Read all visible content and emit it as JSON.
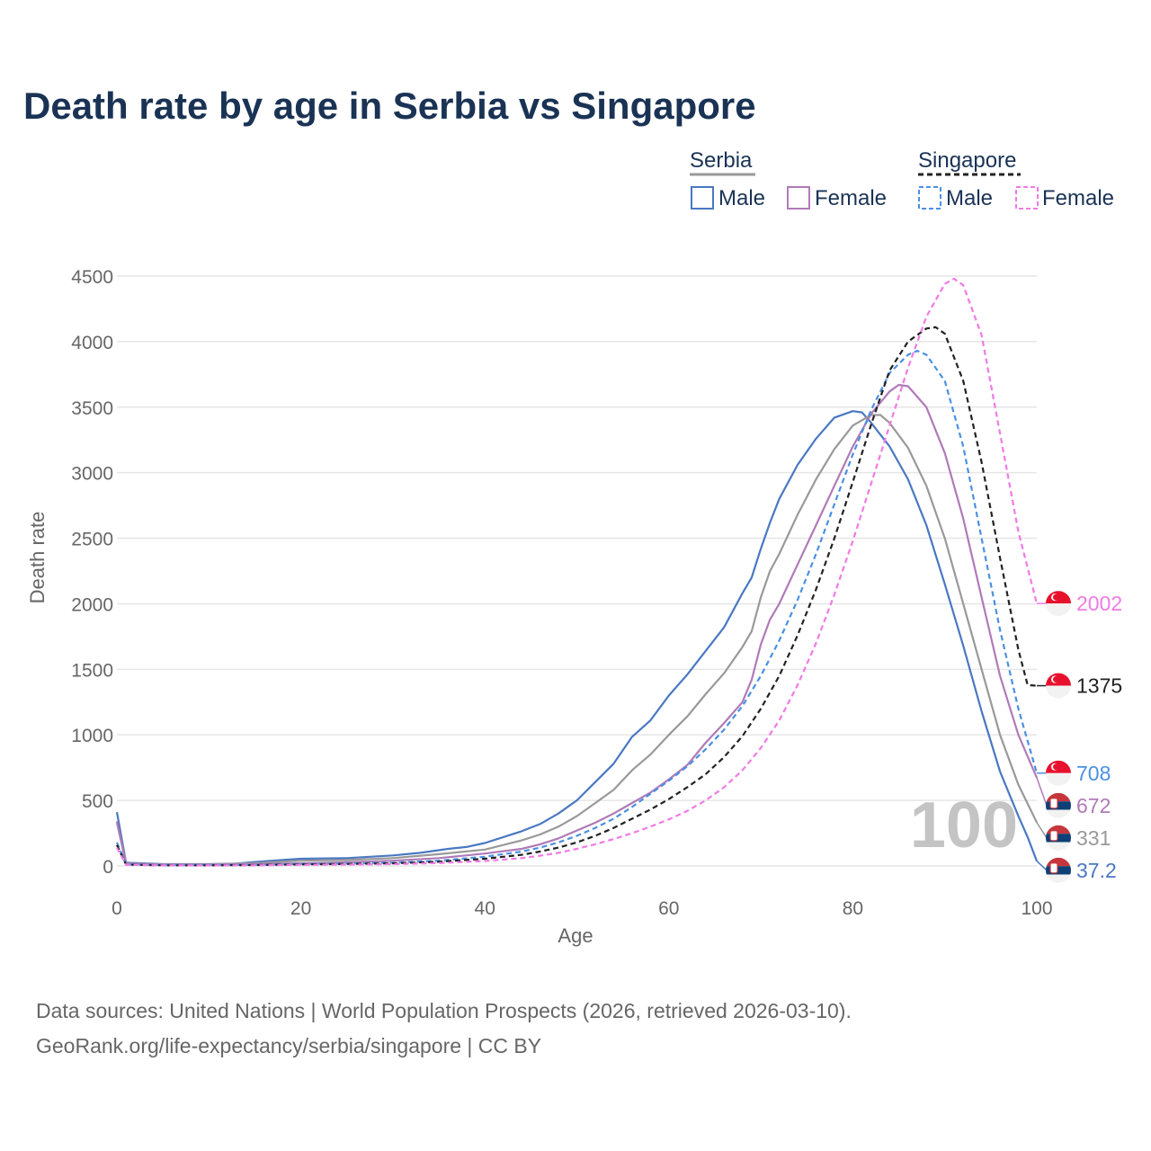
{
  "title": "Death rate by age in Serbia vs Singapore",
  "legend": {
    "group1": "Serbia",
    "group2": "Singapore",
    "items": [
      {
        "label": "Male",
        "color": "#4a78c2",
        "dashed": false
      },
      {
        "label": "Female",
        "color": "#b07ab8",
        "dashed": false
      },
      {
        "label": "Male",
        "color": "#4a90e2",
        "dashed": true
      },
      {
        "label": "Female",
        "color": "#f07ae6",
        "dashed": true
      }
    ]
  },
  "watermark": "100",
  "footer": {
    "line1": "Data sources: United Nations | World Population Prospects (2026, retrieved 2026-03-10).",
    "line2": "GeoRank.org/life-expectancy/serbia/singapore | CC BY"
  },
  "colors": {
    "serbia_male": "#4a78c2",
    "serbia_female": "#b07ab8",
    "serbia_total": "#999999",
    "singapore_male": "#4a90e2",
    "singapore_female": "#f07ae6",
    "singapore_total": "#222222",
    "grid": "#e6e6e6"
  },
  "chart_data": {
    "type": "line",
    "title": "Death rate by age in Serbia vs Singapore",
    "xlabel": "Age",
    "ylabel": "Death rate",
    "xlim": [
      0,
      100
    ],
    "ylim": [
      0,
      4500
    ],
    "xticks": [
      0,
      20,
      40,
      60,
      80,
      100
    ],
    "yticks": [
      0,
      500,
      1000,
      1500,
      2000,
      2500,
      3000,
      3500,
      4000,
      4500
    ],
    "grid": true,
    "series": [
      {
        "name": "Serbia Male",
        "key": "serbia_male",
        "dashed": false,
        "end_label": "37.2",
        "flag": "serbia",
        "points": [
          [
            0,
            410
          ],
          [
            1,
            25
          ],
          [
            5,
            14
          ],
          [
            10,
            14
          ],
          [
            13,
            18
          ],
          [
            15,
            30
          ],
          [
            18,
            45
          ],
          [
            20,
            55
          ],
          [
            25,
            60
          ],
          [
            30,
            80
          ],
          [
            33,
            100
          ],
          [
            36,
            130
          ],
          [
            38,
            145
          ],
          [
            40,
            175
          ],
          [
            42,
            220
          ],
          [
            44,
            265
          ],
          [
            46,
            320
          ],
          [
            48,
            400
          ],
          [
            50,
            500
          ],
          [
            52,
            640
          ],
          [
            54,
            780
          ],
          [
            56,
            985
          ],
          [
            58,
            1110
          ],
          [
            60,
            1300
          ],
          [
            62,
            1460
          ],
          [
            64,
            1640
          ],
          [
            66,
            1820
          ],
          [
            68,
            2080
          ],
          [
            69,
            2200
          ],
          [
            70,
            2420
          ],
          [
            71,
            2620
          ],
          [
            72,
            2800
          ],
          [
            74,
            3060
          ],
          [
            76,
            3260
          ],
          [
            78,
            3420
          ],
          [
            80,
            3470
          ],
          [
            81,
            3460
          ],
          [
            82,
            3380
          ],
          [
            84,
            3200
          ],
          [
            86,
            2950
          ],
          [
            88,
            2600
          ],
          [
            90,
            2150
          ],
          [
            92,
            1680
          ],
          [
            94,
            1180
          ],
          [
            96,
            720
          ],
          [
            98,
            380
          ],
          [
            99,
            220
          ],
          [
            100,
            37.2
          ]
        ]
      },
      {
        "name": "Serbia Total",
        "key": "serbia_total",
        "dashed": false,
        "end_label": "331",
        "flag": "serbia",
        "points": [
          [
            0,
            330
          ],
          [
            1,
            20
          ],
          [
            5,
            12
          ],
          [
            10,
            11
          ],
          [
            15,
            22
          ],
          [
            20,
            40
          ],
          [
            25,
            45
          ],
          [
            30,
            60
          ],
          [
            35,
            90
          ],
          [
            40,
            125
          ],
          [
            44,
            195
          ],
          [
            46,
            240
          ],
          [
            48,
            300
          ],
          [
            50,
            380
          ],
          [
            52,
            480
          ],
          [
            54,
            580
          ],
          [
            56,
            730
          ],
          [
            58,
            850
          ],
          [
            60,
            1000
          ],
          [
            62,
            1140
          ],
          [
            64,
            1310
          ],
          [
            66,
            1470
          ],
          [
            68,
            1670
          ],
          [
            69,
            1790
          ],
          [
            70,
            2050
          ],
          [
            71,
            2250
          ],
          [
            72,
            2380
          ],
          [
            74,
            2680
          ],
          [
            76,
            2950
          ],
          [
            78,
            3180
          ],
          [
            80,
            3360
          ],
          [
            82,
            3440
          ],
          [
            83,
            3440
          ],
          [
            84,
            3380
          ],
          [
            86,
            3190
          ],
          [
            88,
            2900
          ],
          [
            90,
            2500
          ],
          [
            92,
            2000
          ],
          [
            94,
            1500
          ],
          [
            96,
            1000
          ],
          [
            98,
            620
          ],
          [
            100,
            331
          ]
        ]
      },
      {
        "name": "Serbia Female",
        "key": "serbia_female",
        "dashed": false,
        "end_label": "672",
        "flag": "serbia",
        "points": [
          [
            0,
            340
          ],
          [
            1,
            18
          ],
          [
            5,
            10
          ],
          [
            10,
            9
          ],
          [
            15,
            15
          ],
          [
            20,
            20
          ],
          [
            25,
            28
          ],
          [
            30,
            40
          ],
          [
            35,
            60
          ],
          [
            40,
            95
          ],
          [
            44,
            130
          ],
          [
            46,
            165
          ],
          [
            48,
            210
          ],
          [
            50,
            270
          ],
          [
            52,
            330
          ],
          [
            54,
            400
          ],
          [
            56,
            480
          ],
          [
            58,
            560
          ],
          [
            60,
            660
          ],
          [
            62,
            770
          ],
          [
            64,
            940
          ],
          [
            66,
            1090
          ],
          [
            68,
            1250
          ],
          [
            69,
            1420
          ],
          [
            70,
            1690
          ],
          [
            71,
            1880
          ],
          [
            72,
            2000
          ],
          [
            74,
            2300
          ],
          [
            76,
            2600
          ],
          [
            78,
            2900
          ],
          [
            80,
            3200
          ],
          [
            82,
            3450
          ],
          [
            84,
            3620
          ],
          [
            85,
            3670
          ],
          [
            86,
            3660
          ],
          [
            88,
            3500
          ],
          [
            90,
            3150
          ],
          [
            92,
            2650
          ],
          [
            94,
            2050
          ],
          [
            96,
            1450
          ],
          [
            98,
            1000
          ],
          [
            100,
            672
          ]
        ]
      },
      {
        "name": "Singapore Male",
        "key": "singapore_male",
        "dashed": true,
        "end_label": "708",
        "flag": "singapore",
        "points": [
          [
            0,
            180
          ],
          [
            1,
            12
          ],
          [
            5,
            6
          ],
          [
            10,
            6
          ],
          [
            15,
            8
          ],
          [
            20,
            15
          ],
          [
            25,
            18
          ],
          [
            30,
            25
          ],
          [
            35,
            40
          ],
          [
            40,
            70
          ],
          [
            44,
            110
          ],
          [
            46,
            140
          ],
          [
            48,
            180
          ],
          [
            50,
            230
          ],
          [
            52,
            290
          ],
          [
            54,
            360
          ],
          [
            56,
            450
          ],
          [
            58,
            550
          ],
          [
            60,
            650
          ],
          [
            62,
            760
          ],
          [
            64,
            890
          ],
          [
            66,
            1040
          ],
          [
            68,
            1220
          ],
          [
            70,
            1450
          ],
          [
            72,
            1720
          ],
          [
            74,
            2030
          ],
          [
            76,
            2380
          ],
          [
            78,
            2760
          ],
          [
            80,
            3140
          ],
          [
            82,
            3480
          ],
          [
            84,
            3760
          ],
          [
            86,
            3900
          ],
          [
            87,
            3930
          ],
          [
            88,
            3900
          ],
          [
            90,
            3700
          ],
          [
            92,
            3200
          ],
          [
            94,
            2500
          ],
          [
            96,
            1800
          ],
          [
            98,
            1200
          ],
          [
            100,
            708
          ]
        ]
      },
      {
        "name": "Singapore Total",
        "key": "singapore_total",
        "dashed": true,
        "end_label": "1375",
        "flag": "singapore",
        "points": [
          [
            0,
            160
          ],
          [
            1,
            10
          ],
          [
            5,
            5
          ],
          [
            10,
            5
          ],
          [
            15,
            7
          ],
          [
            20,
            12
          ],
          [
            25,
            15
          ],
          [
            30,
            20
          ],
          [
            35,
            32
          ],
          [
            40,
            55
          ],
          [
            44,
            85
          ],
          [
            46,
            110
          ],
          [
            48,
            140
          ],
          [
            50,
            180
          ],
          [
            52,
            230
          ],
          [
            54,
            290
          ],
          [
            56,
            360
          ],
          [
            58,
            430
          ],
          [
            60,
            510
          ],
          [
            62,
            600
          ],
          [
            64,
            700
          ],
          [
            66,
            830
          ],
          [
            68,
            990
          ],
          [
            70,
            1200
          ],
          [
            72,
            1450
          ],
          [
            74,
            1760
          ],
          [
            76,
            2110
          ],
          [
            78,
            2500
          ],
          [
            80,
            2930
          ],
          [
            82,
            3370
          ],
          [
            84,
            3780
          ],
          [
            86,
            4000
          ],
          [
            88,
            4100
          ],
          [
            89,
            4110
          ],
          [
            90,
            4060
          ],
          [
            92,
            3700
          ],
          [
            94,
            3080
          ],
          [
            96,
            2350
          ],
          [
            98,
            1650
          ],
          [
            99,
            1380
          ],
          [
            100,
            1375
          ]
        ]
      },
      {
        "name": "Singapore Female",
        "key": "singapore_female",
        "dashed": true,
        "end_label": "2002",
        "flag": "singapore",
        "points": [
          [
            0,
            140
          ],
          [
            1,
            9
          ],
          [
            5,
            4
          ],
          [
            10,
            4
          ],
          [
            15,
            5
          ],
          [
            20,
            8
          ],
          [
            25,
            10
          ],
          [
            30,
            14
          ],
          [
            35,
            22
          ],
          [
            40,
            38
          ],
          [
            44,
            60
          ],
          [
            46,
            78
          ],
          [
            48,
            100
          ],
          [
            50,
            130
          ],
          [
            52,
            165
          ],
          [
            54,
            205
          ],
          [
            56,
            250
          ],
          [
            58,
            300
          ],
          [
            60,
            355
          ],
          [
            62,
            420
          ],
          [
            64,
            500
          ],
          [
            66,
            600
          ],
          [
            68,
            730
          ],
          [
            70,
            900
          ],
          [
            72,
            1110
          ],
          [
            74,
            1380
          ],
          [
            76,
            1700
          ],
          [
            78,
            2070
          ],
          [
            80,
            2480
          ],
          [
            82,
            2920
          ],
          [
            84,
            3360
          ],
          [
            86,
            3800
          ],
          [
            88,
            4190
          ],
          [
            90,
            4440
          ],
          [
            91,
            4480
          ],
          [
            92,
            4430
          ],
          [
            94,
            4050
          ],
          [
            96,
            3300
          ],
          [
            98,
            2550
          ],
          [
            100,
            2002
          ]
        ]
      }
    ]
  }
}
